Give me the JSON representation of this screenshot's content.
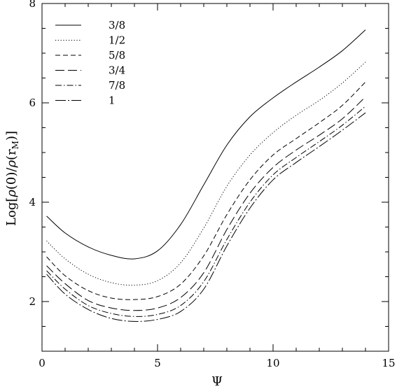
{
  "chart_data": {
    "type": "line",
    "title": "",
    "xlabel": "Ψ",
    "ylabel": "Log[ρ(0)/ρ(r_M)]",
    "ylabel_parts": {
      "prefix": "Log[",
      "rho1": "ρ",
      "zero": "(0)/",
      "rho2": "ρ",
      "paren_r": "(r",
      "sub": "M",
      "close": ")]"
    },
    "xlim": [
      0,
      15
    ],
    "ylim": [
      1,
      8
    ],
    "xticks": [
      0,
      5,
      10,
      15
    ],
    "yticks": [
      2,
      4,
      6,
      8
    ],
    "xtick_labels": [
      "0",
      "5",
      "10",
      "15"
    ],
    "ytick_labels": [
      "2",
      "4",
      "6",
      "8"
    ],
    "grid": false,
    "legend_position": "top-left",
    "series": [
      {
        "name": "3/8",
        "style": "solid",
        "x": [
          0.2,
          1,
          2,
          3,
          4,
          5,
          6,
          7,
          8,
          9,
          10,
          11,
          12,
          13,
          14
        ],
        "y": [
          3.72,
          3.38,
          3.1,
          2.93,
          2.86,
          3.02,
          3.55,
          4.35,
          5.15,
          5.72,
          6.1,
          6.42,
          6.72,
          7.05,
          7.47
        ]
      },
      {
        "name": "1/2",
        "style": "dotted",
        "x": [
          0.2,
          1,
          2,
          3,
          4,
          5,
          6,
          7,
          8,
          9,
          10,
          11,
          12,
          13,
          14
        ],
        "y": [
          3.22,
          2.86,
          2.55,
          2.38,
          2.33,
          2.42,
          2.78,
          3.48,
          4.32,
          4.95,
          5.4,
          5.75,
          6.05,
          6.4,
          6.82
        ]
      },
      {
        "name": "5/8",
        "style": "dashed",
        "x": [
          0.2,
          1,
          2,
          3,
          4,
          5,
          6,
          7,
          8,
          9,
          10,
          11,
          12,
          13,
          14
        ],
        "y": [
          2.9,
          2.52,
          2.22,
          2.07,
          2.04,
          2.1,
          2.35,
          2.92,
          3.75,
          4.45,
          4.95,
          5.28,
          5.6,
          5.95,
          6.42
        ]
      },
      {
        "name": "3/4",
        "style": "longdash",
        "x": [
          0.2,
          1,
          2,
          3,
          4,
          5,
          6,
          7,
          8,
          9,
          10,
          11,
          12,
          13,
          14
        ],
        "y": [
          2.72,
          2.36,
          2.02,
          1.87,
          1.82,
          1.87,
          2.08,
          2.58,
          3.45,
          4.18,
          4.7,
          5.05,
          5.35,
          5.68,
          6.12
        ]
      },
      {
        "name": "7/8",
        "style": "dashdot",
        "x": [
          0.2,
          1,
          2,
          3,
          4,
          5,
          6,
          7,
          8,
          9,
          10,
          11,
          12,
          13,
          14
        ],
        "y": [
          2.62,
          2.25,
          1.92,
          1.76,
          1.7,
          1.74,
          1.92,
          2.4,
          3.25,
          4.0,
          4.55,
          4.9,
          5.22,
          5.55,
          5.93
        ]
      },
      {
        "name": "1",
        "style": "longdashdot",
        "x": [
          0.2,
          1,
          2,
          3,
          4,
          5,
          6,
          7,
          8,
          9,
          10,
          11,
          12,
          13,
          14
        ],
        "y": [
          2.55,
          2.15,
          1.84,
          1.66,
          1.6,
          1.64,
          1.8,
          2.25,
          3.12,
          3.88,
          4.45,
          4.8,
          5.12,
          5.45,
          5.8
        ]
      }
    ]
  }
}
